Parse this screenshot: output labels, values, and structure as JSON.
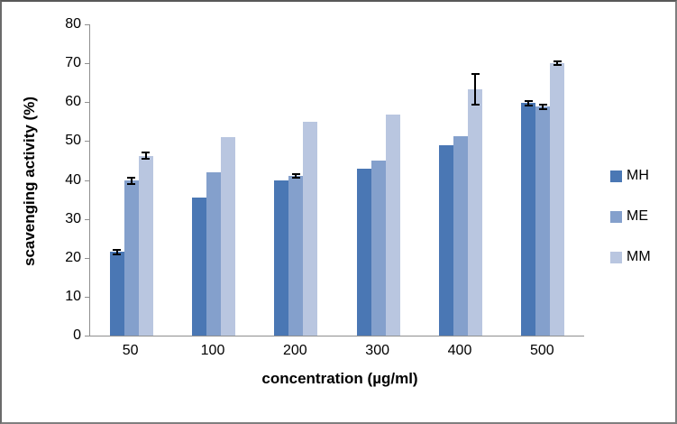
{
  "chart_data": {
    "type": "bar",
    "title": "",
    "xlabel": "concentration (µg/ml)",
    "ylabel": "scavenging activity (%)",
    "ylim": [
      0,
      80
    ],
    "ytick_step": 10,
    "grid": false,
    "legend_position": "right",
    "error_bar_color": "#000000",
    "axis_color": "#8f8f8f",
    "categories": [
      "50",
      "100",
      "200",
      "300",
      "400",
      "500"
    ],
    "series": [
      {
        "name": "MH",
        "color": "#4A77B4",
        "values": [
          21.5,
          35.5,
          40.0,
          43.0,
          49.0,
          59.8
        ],
        "errors": [
          0.8,
          0,
          0,
          0,
          0,
          0.8
        ]
      },
      {
        "name": "ME",
        "color": "#84A0CC",
        "values": [
          39.8,
          42.0,
          41.0,
          45.0,
          51.3,
          58.8
        ],
        "errors": [
          1.0,
          0,
          0.7,
          0,
          0,
          0.8
        ]
      },
      {
        "name": "MM",
        "color": "#B9C6E0",
        "values": [
          46.2,
          51.0,
          55.0,
          56.8,
          63.3,
          70.0
        ],
        "errors": [
          1.0,
          0,
          0,
          0,
          4.2,
          0.7
        ]
      }
    ]
  }
}
